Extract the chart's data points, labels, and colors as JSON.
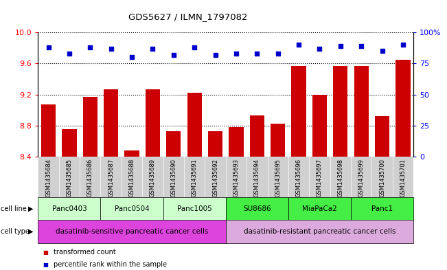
{
  "title": "GDS5627 / ILMN_1797082",
  "samples": [
    "GSM1435684",
    "GSM1435685",
    "GSM1435686",
    "GSM1435687",
    "GSM1435688",
    "GSM1435689",
    "GSM1435690",
    "GSM1435691",
    "GSM1435692",
    "GSM1435693",
    "GSM1435694",
    "GSM1435695",
    "GSM1435696",
    "GSM1435697",
    "GSM1435698",
    "GSM1435699",
    "GSM1435700",
    "GSM1435701"
  ],
  "bar_values": [
    9.07,
    8.75,
    9.17,
    9.27,
    8.48,
    9.27,
    8.73,
    9.22,
    8.73,
    8.78,
    8.93,
    8.82,
    9.57,
    9.2,
    9.57,
    9.57,
    8.92,
    9.65
  ],
  "percentile_values": [
    88,
    83,
    88,
    87,
    80,
    87,
    82,
    88,
    82,
    83,
    83,
    83,
    90,
    87,
    89,
    89,
    85,
    90
  ],
  "bar_color": "#cc0000",
  "dot_color": "#0000cc",
  "ylim_left": [
    8.4,
    10.0
  ],
  "ylim_right": [
    0,
    100
  ],
  "yticks_left": [
    8.4,
    8.8,
    9.2,
    9.6,
    10.0
  ],
  "yticks_right": [
    0,
    25,
    50,
    75,
    100
  ],
  "ytick_labels_right": [
    "0",
    "25",
    "50",
    "75",
    "100%"
  ],
  "cell_lines": [
    {
      "name": "Panc0403",
      "start": 0,
      "end": 3,
      "color": "#ccffcc"
    },
    {
      "name": "Panc0504",
      "start": 3,
      "end": 6,
      "color": "#ccffcc"
    },
    {
      "name": "Panc1005",
      "start": 6,
      "end": 9,
      "color": "#ccffcc"
    },
    {
      "name": "SU8686",
      "start": 9,
      "end": 12,
      "color": "#44ee44"
    },
    {
      "name": "MiaPaCa2",
      "start": 12,
      "end": 15,
      "color": "#44ee44"
    },
    {
      "name": "Panc1",
      "start": 15,
      "end": 18,
      "color": "#44ee44"
    }
  ],
  "cell_types": [
    {
      "name": "dasatinib-sensitive pancreatic cancer cells",
      "start": 0,
      "end": 9,
      "color": "#dd44dd"
    },
    {
      "name": "dasatinib-resistant pancreatic cancer cells",
      "start": 9,
      "end": 18,
      "color": "#ddaadd"
    }
  ],
  "legend_bar_label": "transformed count",
  "legend_dot_label": "percentile rank within the sample",
  "cell_line_label": "cell line",
  "cell_type_label": "cell type",
  "bar_bottom": 8.4
}
